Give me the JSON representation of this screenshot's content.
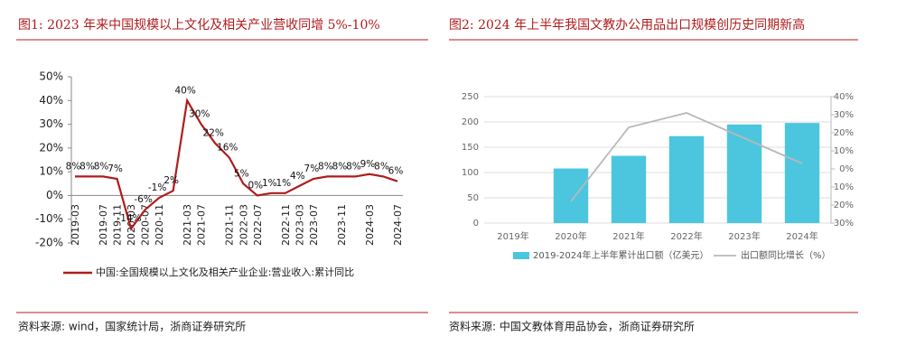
{
  "chart_data": [
    {
      "type": "line",
      "title": "图1:  2023 年来中国规模以上文化及相关产业营收同增 5%-10%",
      "source": "资料来源:  wind，国家统计局，浙商证券研究所",
      "categories": [
        "2019-03",
        null,
        "2019-07",
        "2019-11",
        "2020-03",
        "2020-07",
        "2020-11",
        null,
        "2021-03",
        "2021-07",
        null,
        "2021-11",
        "2022-03",
        "2022-07",
        null,
        "2022-11",
        "2023-03",
        "2023-07",
        null,
        "2023-11",
        null,
        "2024-03",
        null,
        "2024-07"
      ],
      "series": [
        {
          "name": "中国:全国规模以上文化及相关产业企业:营业收入:累计同比",
          "color": "#b01c1c",
          "values": [
            8,
            8,
            8,
            7,
            -14,
            -6,
            -1,
            2,
            40,
            30,
            22,
            16,
            5,
            0,
            1,
            1,
            4,
            7,
            8,
            8,
            8,
            9,
            8,
            6
          ],
          "value_labels": [
            "8%",
            "8%",
            "8%",
            "7%",
            "-14%",
            "-6%",
            "-1%",
            "2%",
            "40%",
            "30%",
            "22%",
            "16%",
            "5%",
            "0%",
            "1%",
            "1%",
            "4%",
            "7%",
            "8%",
            "8%",
            "8%",
            "9%",
            "8%",
            "6%"
          ]
        }
      ],
      "ylim": [
        -20,
        50
      ],
      "yticks": [
        {
          "value": -20,
          "label": "-20%"
        },
        {
          "value": -10,
          "label": "-10%"
        },
        {
          "value": 0,
          "label": "0%"
        },
        {
          "value": 10,
          "label": "10%"
        },
        {
          "value": 20,
          "label": "20%"
        },
        {
          "value": 30,
          "label": "30%"
        },
        {
          "value": 40,
          "label": "40%"
        },
        {
          "value": 50,
          "label": "50%"
        }
      ],
      "legend": "bottom"
    },
    {
      "type": "bar",
      "title": "图2:  2024 年上半年我国文教办公用品出口规模创历史同期新高",
      "source": "资料来源:  中国文教体育用品协会，浙商证券研究所",
      "categories": [
        "2019年",
        "2020年",
        "2021年",
        "2022年",
        "2023年",
        "2024年"
      ],
      "series": [
        {
          "name": "2019-2024年上半年累计出口额（亿美元）",
          "type": "bar",
          "color": "#4cc6df",
          "values": [
            null,
            108,
            133,
            172,
            195,
            198
          ]
        },
        {
          "name": "出口额同比增长（%）",
          "type": "line",
          "axis": "y2",
          "color": "#b8b8b8",
          "values": [
            null,
            -18,
            23,
            31,
            17,
            3
          ]
        }
      ],
      "ylim": [
        0,
        250
      ],
      "yticks": [
        0,
        50,
        100,
        150,
        200,
        250
      ],
      "y2lim": [
        -30,
        40
      ],
      "y2ticks": [
        {
          "value": -30,
          "label": "-30%"
        },
        {
          "value": -20,
          "label": "-20%"
        },
        {
          "value": -10,
          "label": "-10%"
        },
        {
          "value": 0,
          "label": "0%"
        },
        {
          "value": 10,
          "label": "10%"
        },
        {
          "value": 20,
          "label": "20%"
        },
        {
          "value": 30,
          "label": "30%"
        },
        {
          "value": 40,
          "label": "40%"
        }
      ],
      "grid": true,
      "legend": "bottom"
    }
  ]
}
